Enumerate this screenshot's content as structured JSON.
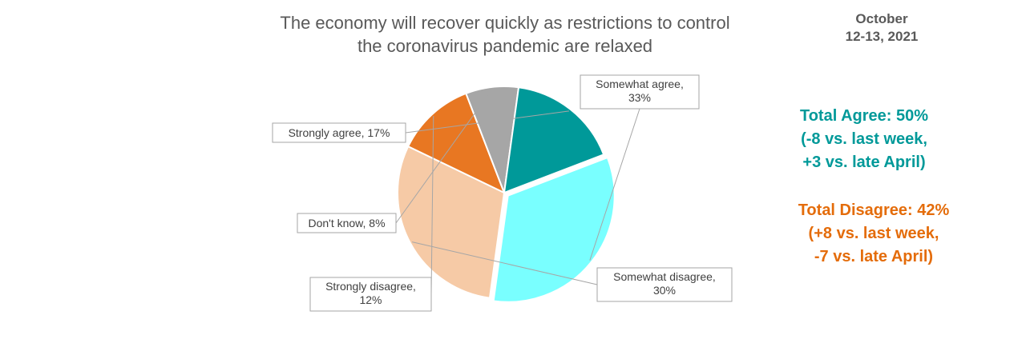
{
  "title_line1": "The economy will recover quickly as restrictions to control",
  "title_line2": "the coronavirus pandemic are relaxed",
  "date_line1": "October",
  "date_line2": "12-13, 2021",
  "total_agree": {
    "line1": "Total Agree: 50%",
    "line2": "(-8 vs. last week,",
    "line3": "+3 vs. late April)",
    "color": "#009999"
  },
  "total_disagree": {
    "line1": "Total Disagree: 42%",
    "line2": "(+8 vs. last week,",
    "line3": "-7 vs. late April)",
    "color": "#E46C0A"
  },
  "chart_data": {
    "type": "pie",
    "title": "The economy will recover quickly as restrictions to control the coronavirus pandemic are relaxed",
    "slices": [
      {
        "label": "Somewhat agree",
        "value": 33,
        "display": "Somewhat agree, 33%",
        "color": "#79FFFF"
      },
      {
        "label": "Somewhat disagree",
        "value": 30,
        "display": "Somewhat disagree, 30%",
        "color": "#F6CAA6"
      },
      {
        "label": "Strongly disagree",
        "value": 12,
        "display": "Strongly disagree, 12%",
        "color": "#E87722"
      },
      {
        "label": "Don't know",
        "value": 8,
        "display": "Don't know, 8%",
        "color": "#A6A6A6"
      },
      {
        "label": "Strongly agree",
        "value": 17,
        "display": "Strongly agree, 17%",
        "color": "#009999"
      }
    ],
    "start_angle_deg": -21,
    "direction": "clockwise"
  }
}
